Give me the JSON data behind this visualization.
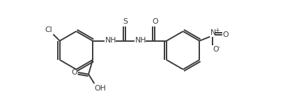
{
  "background": "#ffffff",
  "line_color": "#3a3a3a",
  "line_width": 1.4,
  "font_size": 7.8,
  "fig_width": 4.42,
  "fig_height": 1.58,
  "xlim": [
    0,
    11.0
  ],
  "ylim": [
    -0.5,
    4.2
  ]
}
